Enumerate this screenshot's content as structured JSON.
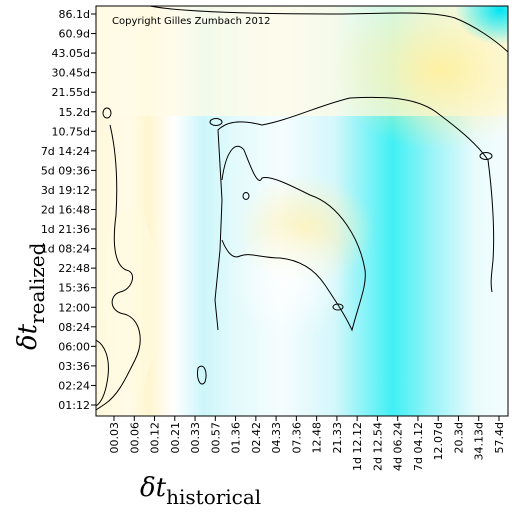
{
  "chart_data": {
    "type": "heatmap",
    "title": "",
    "copyright": "Copyright Gilles Zumbach 2012",
    "xlabel": {
      "symbol": "δt",
      "subscript": "historical"
    },
    "ylabel": {
      "symbol": "δt",
      "subscript": "realized"
    },
    "x_ticks": [
      "00.03",
      "00.06",
      "00.12",
      "00.21",
      "00.33",
      "00.57",
      "01.36",
      "02.42",
      "04.33",
      "07.36",
      "12.48",
      "21.33",
      "1d 12.12",
      "2d 12.54",
      "4d 06.24",
      "7d 04.12",
      "12.07d",
      "20.3d",
      "34.13d",
      "57.4d"
    ],
    "y_ticks": [
      "01:12",
      "02:24",
      "03:36",
      "06:00",
      "08:24",
      "12:00",
      "15:36",
      "22:48",
      "1d 08:24",
      "1d 21:36",
      "2d 16:48",
      "3d 19:12",
      "5d 09:36",
      "7d 14:24",
      "10.75d",
      "15.2d",
      "21.55d",
      "30.45d",
      "43.05d",
      "60.9d",
      "86.1d"
    ],
    "grid": false,
    "legend": "none",
    "colors": {
      "low": "#00e8f0",
      "mid": "#ffffff",
      "high": "#fff0a0",
      "contour": "#000000"
    }
  }
}
